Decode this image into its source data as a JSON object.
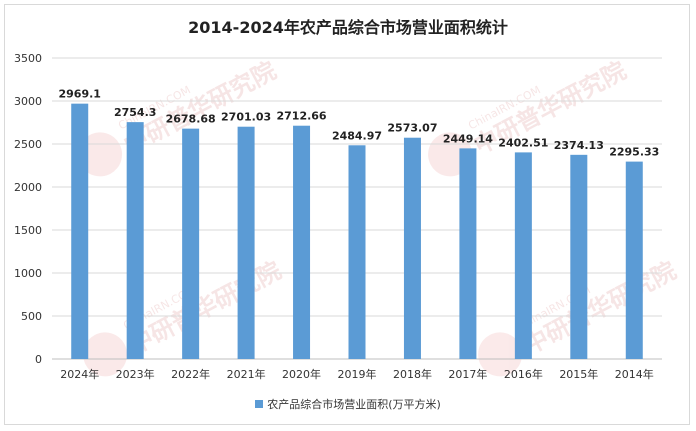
{
  "chart_data": {
    "type": "bar",
    "title": "2014-2024年农产品综合市场营业面积统计",
    "categories": [
      "2024年",
      "2023年",
      "2022年",
      "2021年",
      "2020年",
      "2019年",
      "2018年",
      "2017年",
      "2016年",
      "2015年",
      "2014年"
    ],
    "series": [
      {
        "name": "农产品综合市场营业面积(万平方米)",
        "values": [
          2969.1,
          2754.3,
          2678.68,
          2701.03,
          2712.66,
          2484.97,
          2573.07,
          2449.14,
          2402.51,
          2374.13,
          2295.33
        ],
        "value_labels": [
          "2969.1",
          "2754.3",
          "2678.68",
          "2701.03",
          "2712.66",
          "2484.97",
          "2573.07",
          "2449.14",
          "2402.51",
          "2374.13",
          "2295.33"
        ]
      }
    ],
    "ylim": [
      0,
      3500
    ],
    "yticks": [
      0,
      500,
      1000,
      1500,
      2000,
      2500,
      3000,
      3500
    ],
    "grid": true,
    "legend_position": "bottom",
    "bar_color": "#5b9bd5",
    "watermark_text": [
      "ChinaIRN.COM",
      "中研普华研究院"
    ]
  }
}
